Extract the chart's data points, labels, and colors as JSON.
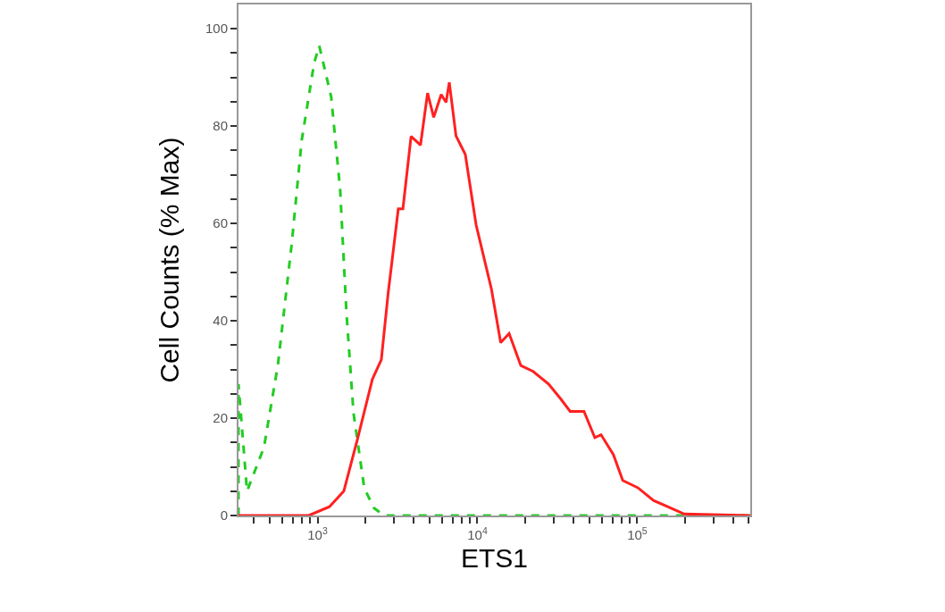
{
  "chart_data": {
    "type": "line",
    "xlabel": "ETS1",
    "ylabel": "Cell Counts (% Max)",
    "log": "x",
    "legend": false,
    "marker": "none",
    "xlim": [
      320,
      510000
    ],
    "ylim": [
      0,
      105
    ],
    "xticks": [
      {
        "value": 400,
        "label": null
      },
      {
        "value": 500,
        "label": null
      },
      {
        "value": 600,
        "label": null
      },
      {
        "value": 700,
        "label": null
      },
      {
        "value": 800,
        "label": null
      },
      {
        "value": 900,
        "label": null
      },
      {
        "value": 1000,
        "label": "10$^{3}$"
      },
      {
        "value": 2000,
        "label": null
      },
      {
        "value": 3000,
        "label": null
      },
      {
        "value": 4000,
        "label": null
      },
      {
        "value": 5000,
        "label": null
      },
      {
        "value": 6000,
        "label": null
      },
      {
        "value": 7000,
        "label": null
      },
      {
        "value": 8000,
        "label": null
      },
      {
        "value": 9000,
        "label": null
      },
      {
        "value": 10000,
        "label": "10$^{4}$"
      },
      {
        "value": 20000,
        "label": null
      },
      {
        "value": 30000,
        "label": null
      },
      {
        "value": 40000,
        "label": null
      },
      {
        "value": 50000,
        "label": null
      },
      {
        "value": 60000,
        "label": null
      },
      {
        "value": 70000,
        "label": null
      },
      {
        "value": 80000,
        "label": null
      },
      {
        "value": 90000,
        "label": null
      },
      {
        "value": 100000,
        "label": "10$^{5}$"
      },
      {
        "value": 200000,
        "label": null
      },
      {
        "value": 300000,
        "label": null
      },
      {
        "value": 400000,
        "label": null
      },
      {
        "value": 500000,
        "label": null
      }
    ],
    "yticks": [
      0,
      {
        "value": 5,
        "label": null
      },
      {
        "value": 10,
        "label": null
      },
      {
        "value": 15,
        "label": null
      },
      20,
      {
        "value": 25,
        "label": null
      },
      {
        "value": 30,
        "label": null
      },
      {
        "value": 35,
        "label": null
      },
      40,
      {
        "value": 45,
        "label": null
      },
      {
        "value": 50,
        "label": null
      },
      {
        "value": 55,
        "label": null
      },
      60,
      {
        "value": 65,
        "label": null
      },
      {
        "value": 70,
        "label": null
      },
      {
        "value": 75,
        "label": null
      },
      80,
      {
        "value": 85,
        "label": null
      },
      {
        "value": 90,
        "label": null
      },
      {
        "value": 95,
        "label": null
      },
      100
    ],
    "series": [
      {
        "color": "#22cc22",
        "line_style": "dashed",
        "x": [
          320,
          320,
          362,
          462,
          565,
          690,
          795,
          952,
          1025,
          1217,
          1384,
          1514,
          1679,
          1961,
          2258,
          2606,
          510000
        ],
        "values": [
          0,
          27,
          5,
          14,
          31,
          56,
          77,
          93,
          96.5,
          86,
          67,
          42,
          21,
          5.6,
          1.5,
          0,
          0
        ]
      },
      {
        "color": "#ff2020",
        "line_style": "solid",
        "x": [
          320,
          881,
          1186,
          1459,
          1771,
          2203,
          2506,
          2763,
          3200,
          3420,
          3846,
          4405,
          4880,
          5330,
          5935,
          6370,
          6670,
          7350,
          8400,
          9820,
          12250,
          13990,
          15790,
          18700,
          22340,
          27880,
          33320,
          38050,
          46450,
          54300,
          59400,
          71000,
          81200,
          101000,
          126500,
          197000,
          510000
        ],
        "values": [
          0,
          0,
          1.8,
          5,
          15.5,
          28,
          32,
          45.6,
          63,
          63,
          77.9,
          76.1,
          86.8,
          81.8,
          86.5,
          84.9,
          89,
          78,
          74.2,
          59.7,
          46.5,
          35.5,
          37.4,
          30.8,
          29.6,
          27,
          23.9,
          21.4,
          21.4,
          16,
          16.6,
          12.5,
          7.2,
          5.7,
          3.1,
          0.3,
          0
        ]
      }
    ]
  }
}
